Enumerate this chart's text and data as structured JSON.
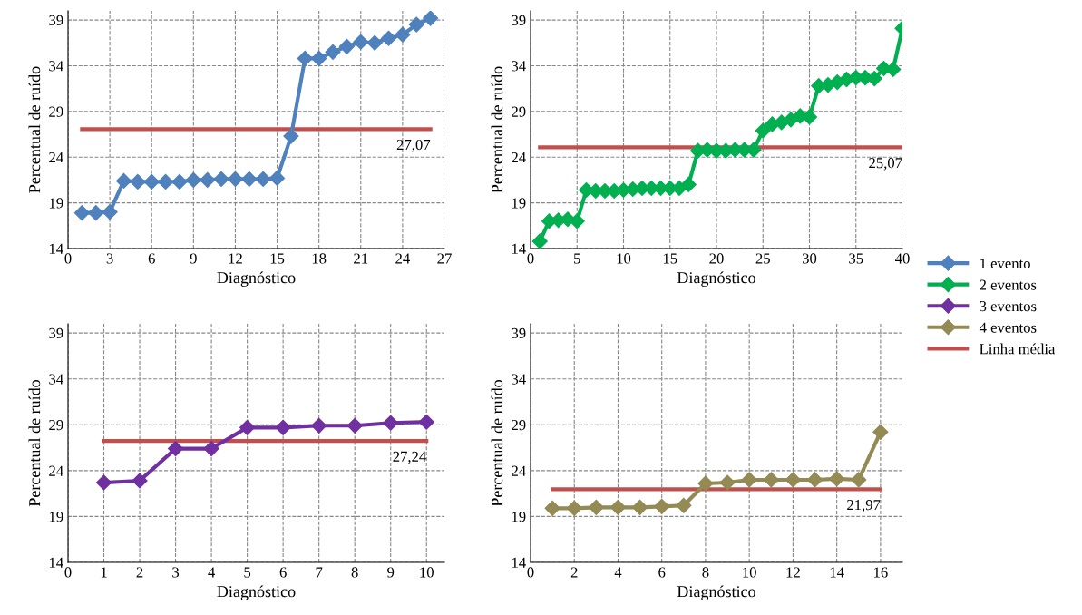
{
  "chart_data": [
    {
      "type": "line",
      "xlabel": "Diagnóstico",
      "ylabel": "Percentual de ruído",
      "xlim": [
        0,
        27
      ],
      "xticks": [
        0,
        3,
        6,
        9,
        12,
        15,
        18,
        21,
        24,
        27
      ],
      "ylim": [
        14,
        40
      ],
      "yticks": [
        14,
        19,
        24,
        29,
        34,
        39
      ],
      "grid": true,
      "legend": "right",
      "series": [
        {
          "name": "1 evento",
          "color": "#4f81bd",
          "marker": "diamond",
          "x": [
            1,
            2,
            3,
            4,
            5,
            6,
            7,
            8,
            9,
            10,
            11,
            12,
            13,
            14,
            15,
            16,
            17,
            18,
            19,
            20,
            21,
            22,
            23,
            24,
            25,
            26
          ],
          "values": [
            17.9,
            17.9,
            18.0,
            21.4,
            21.3,
            21.3,
            21.3,
            21.3,
            21.5,
            21.5,
            21.6,
            21.6,
            21.6,
            21.6,
            21.7,
            26.3,
            34.8,
            34.8,
            35.5,
            36.1,
            36.6,
            36.5,
            37.0,
            37.4,
            38.5,
            39.2
          ]
        },
        {
          "name": "Linha média",
          "color": "#c0504d",
          "marker": "none",
          "x": [
            1,
            26
          ],
          "values": [
            27.07,
            27.07
          ]
        }
      ],
      "annotations": [
        {
          "text": "27,07",
          "x": 26,
          "y": 27.07
        }
      ]
    },
    {
      "type": "line",
      "xlabel": "Diagnóstico",
      "ylabel": "Percentual de ruído",
      "xlim": [
        0,
        40
      ],
      "xticks": [
        0,
        5,
        10,
        15,
        20,
        25,
        30,
        35,
        40
      ],
      "ylim": [
        14,
        40
      ],
      "yticks": [
        14,
        19,
        24,
        29,
        34,
        39
      ],
      "grid": true,
      "legend": "right",
      "series": [
        {
          "name": "2 eventos",
          "color": "#00b050",
          "marker": "diamond",
          "x": [
            1,
            2,
            3,
            4,
            5,
            6,
            7,
            8,
            9,
            10,
            11,
            12,
            13,
            14,
            15,
            16,
            17,
            18,
            19,
            20,
            21,
            22,
            23,
            24,
            25,
            26,
            27,
            28,
            29,
            30,
            31,
            32,
            33,
            34,
            35,
            36,
            37,
            38,
            39,
            40
          ],
          "values": [
            14.8,
            17.0,
            17.1,
            17.2,
            17.0,
            20.4,
            20.3,
            20.3,
            20.3,
            20.4,
            20.5,
            20.6,
            20.6,
            20.6,
            20.6,
            20.6,
            21.0,
            24.7,
            24.8,
            24.7,
            24.7,
            24.8,
            24.8,
            24.8,
            26.9,
            27.6,
            27.8,
            28.1,
            28.5,
            28.4,
            31.8,
            31.9,
            32.2,
            32.5,
            32.7,
            32.7,
            32.6,
            33.7,
            33.6,
            38.1
          ]
        },
        {
          "name": "Linha média",
          "color": "#c0504d",
          "marker": "none",
          "x": [
            1,
            40
          ],
          "values": [
            25.07,
            25.07
          ]
        }
      ],
      "annotations": [
        {
          "text": "25,07",
          "x": 40,
          "y": 25.07
        }
      ]
    },
    {
      "type": "line",
      "xlabel": "Diagnóstico",
      "ylabel": "Percentual de ruído",
      "xlim": [
        0,
        10.5
      ],
      "xticks": [
        0,
        1,
        2,
        3,
        4,
        5,
        6,
        7,
        8,
        9,
        10
      ],
      "ylim": [
        14,
        40
      ],
      "yticks": [
        14,
        19,
        24,
        29,
        34,
        39
      ],
      "grid": true,
      "legend": "right",
      "series": [
        {
          "name": "3 eventos",
          "color": "#7030a0",
          "marker": "diamond",
          "x": [
            1,
            2,
            3,
            4,
            5,
            6,
            7,
            8,
            9,
            10
          ],
          "values": [
            22.7,
            22.9,
            26.4,
            26.4,
            28.7,
            28.7,
            28.9,
            28.9,
            29.2,
            29.3
          ]
        },
        {
          "name": "Linha média",
          "color": "#c0504d",
          "marker": "none",
          "x": [
            1,
            10
          ],
          "values": [
            27.24,
            27.24
          ]
        }
      ],
      "annotations": [
        {
          "text": "27,24",
          "x": 10,
          "y": 27.24
        }
      ]
    },
    {
      "type": "line",
      "xlabel": "Diagnóstico",
      "ylabel": "Percentual de ruído",
      "xlim": [
        0,
        17
      ],
      "xticks": [
        0,
        2,
        4,
        6,
        8,
        10,
        12,
        14,
        16
      ],
      "ylim": [
        14,
        40
      ],
      "yticks": [
        14,
        19,
        24,
        29,
        34,
        39
      ],
      "grid": true,
      "legend": "right",
      "series": [
        {
          "name": "4 eventos",
          "color": "#948a54",
          "marker": "diamond",
          "x": [
            1,
            2,
            3,
            4,
            5,
            6,
            7,
            8,
            9,
            10,
            11,
            12,
            13,
            14,
            15,
            16
          ],
          "values": [
            19.9,
            19.9,
            20.0,
            20.0,
            20.0,
            20.1,
            20.2,
            22.6,
            22.7,
            23.0,
            23.0,
            23.0,
            23.0,
            23.1,
            23.0,
            28.2
          ]
        },
        {
          "name": "Linha média",
          "color": "#c0504d",
          "marker": "none",
          "x": [
            1,
            16
          ],
          "values": [
            21.97,
            21.97
          ]
        }
      ],
      "annotations": [
        {
          "text": "21,97",
          "x": 16,
          "y": 21.97
        }
      ]
    }
  ]
}
